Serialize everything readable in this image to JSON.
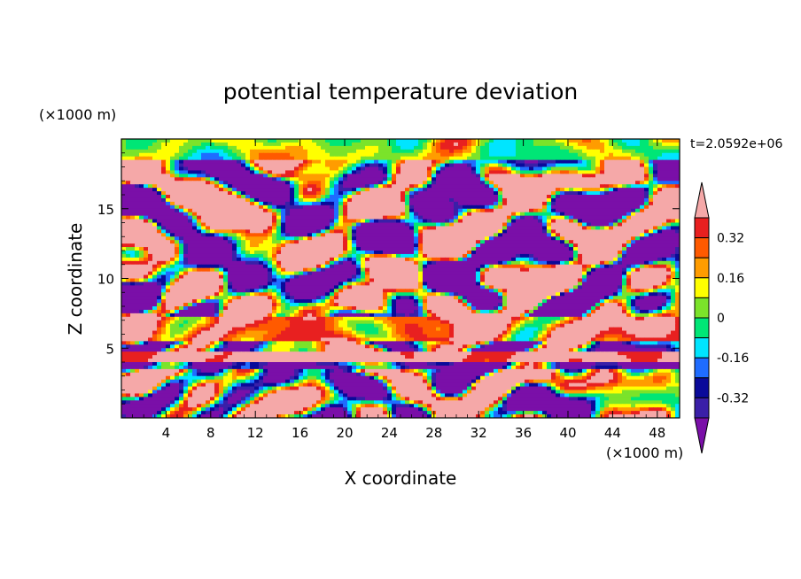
{
  "chart_data": {
    "type": "heatmap",
    "title": "potential temperature deviation",
    "xlabel": "X coordinate",
    "ylabel": "Z coordinate",
    "x_unit": "(×1000 m)",
    "y_unit": "(×1000 m)",
    "time_label": "t=2.0592e+06",
    "xlim": [
      0,
      50
    ],
    "ylim": [
      0,
      20
    ],
    "x_ticks": [
      4,
      8,
      12,
      16,
      20,
      24,
      28,
      32,
      36,
      40,
      44,
      48
    ],
    "y_ticks": [
      5,
      10,
      15
    ],
    "colorbar": {
      "levels": [
        -0.4,
        -0.32,
        -0.24,
        -0.16,
        -0.08,
        0,
        0.08,
        0.16,
        0.24,
        0.32,
        0.4
      ],
      "labels": [
        "0.32",
        "0.16",
        "0",
        "-0.16",
        "-0.32"
      ],
      "label_values": [
        0.32,
        0.16,
        0,
        -0.16,
        -0.32
      ],
      "colors": [
        "#7a0fa8",
        "#3a1fa8",
        "#0a0a9a",
        "#1f6cff",
        "#00e5ff",
        "#00e676",
        "#7be32a",
        "#ffff00",
        "#ff9c00",
        "#ff5a00",
        "#e82020",
        "#f5a8a8"
      ]
    },
    "bands": [
      {
        "z_range": [
          19,
          20
        ],
        "value": 0.05,
        "note": "top layer mostly green"
      },
      {
        "z_range": [
          12.5,
          17.5
        ],
        "value": "mixed",
        "note": "turbulent blobs: purple, red, pink"
      },
      {
        "z_range": [
          5.5,
          7.2
        ],
        "value": 0.34,
        "note": "red/orange layer"
      },
      {
        "z_range": [
          4.0,
          4.6
        ],
        "value": 0.44,
        "note": "pink layer"
      },
      {
        "z_range": [
          0,
          4.0
        ],
        "value": "mixed",
        "note": "vertical plumes near surface"
      }
    ]
  }
}
